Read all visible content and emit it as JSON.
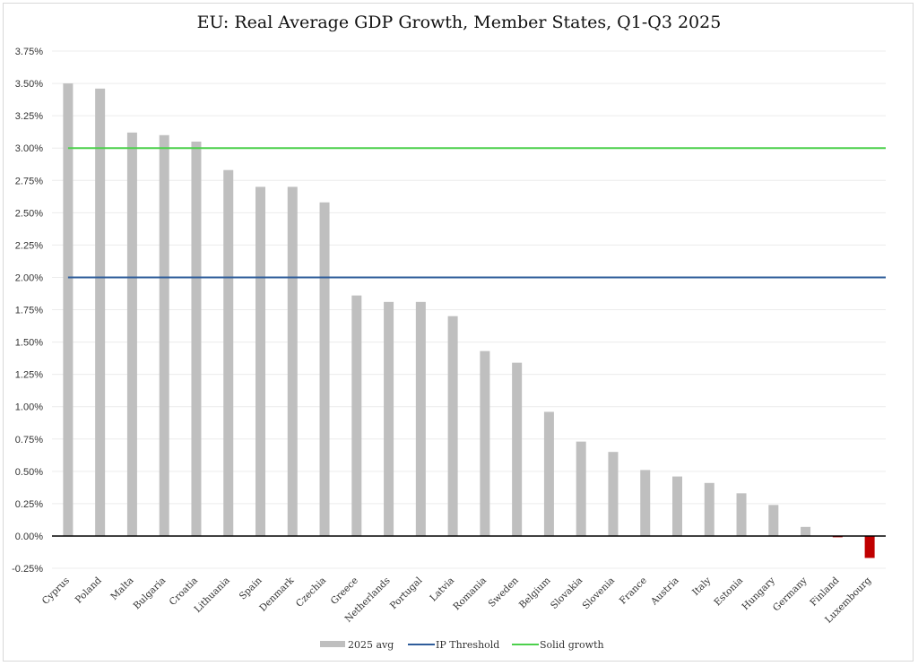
{
  "chart_data": {
    "type": "bar",
    "title": "EU: Real Average GDP Growth, Member States, Q1-Q3 2025",
    "xlabel": "",
    "ylabel": "",
    "ylim": [
      -0.25,
      3.75
    ],
    "yticks": [
      -0.25,
      0.0,
      0.25,
      0.5,
      0.75,
      1.0,
      1.25,
      1.5,
      1.75,
      2.0,
      2.25,
      2.5,
      2.75,
      3.0,
      3.25,
      3.5,
      3.75
    ],
    "ytick_labels": [
      "-0.25%",
      "0.00%",
      "0.25%",
      "0.50%",
      "0.75%",
      "1.00%",
      "1.25%",
      "1.50%",
      "1.75%",
      "2.00%",
      "2.25%",
      "2.50%",
      "2.75%",
      "3.00%",
      "3.25%",
      "3.50%",
      "3.75%"
    ],
    "grid": true,
    "categories": [
      "Cyprus",
      "Poland",
      "Malta",
      "Bulgaria",
      "Croatia",
      "Lithuania",
      "Spain",
      "Denmark",
      "Czechia",
      "Greece",
      "Netherlands",
      "Portugal",
      "Latvia",
      "Romania",
      "Sweden",
      "Belgium",
      "Slovakia",
      "Slovenia",
      "France",
      "Austria",
      "Italy",
      "Estonia",
      "Hungary",
      "Germany",
      "Finland",
      "Luxembourg"
    ],
    "series": [
      {
        "name": "2025 avg",
        "kind": "bar",
        "color": "#bfbfbf",
        "negative_color": "#c00000",
        "values": [
          3.5,
          3.46,
          3.12,
          3.1,
          3.05,
          2.83,
          2.7,
          2.7,
          2.58,
          1.86,
          1.81,
          1.81,
          1.7,
          1.43,
          1.34,
          0.96,
          0.73,
          0.65,
          0.51,
          0.46,
          0.41,
          0.33,
          0.24,
          0.07,
          -0.01,
          -0.17
        ]
      },
      {
        "name": "IP Threshold",
        "kind": "line",
        "color": "#2e5c9a",
        "value": 2.0
      },
      {
        "name": "Solid growth",
        "kind": "line",
        "color": "#4cd04c",
        "value": 3.0
      }
    ],
    "legend_position": "bottom-center"
  }
}
